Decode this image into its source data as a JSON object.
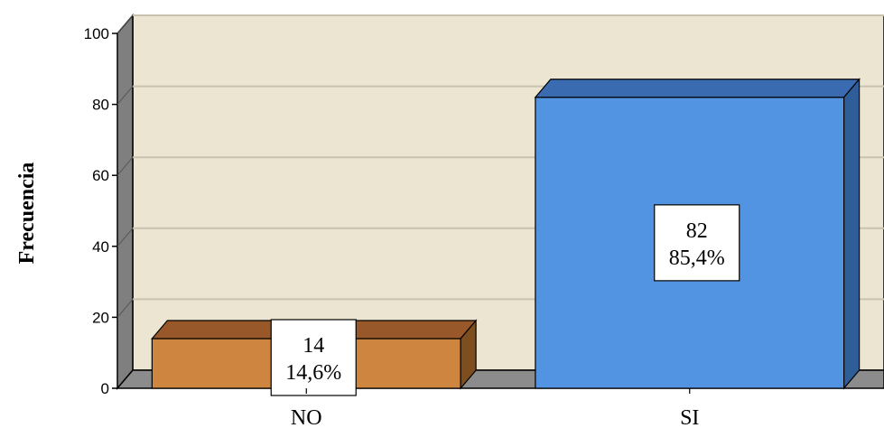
{
  "chart_data": {
    "type": "bar",
    "categories": [
      "NO",
      "SI"
    ],
    "values": [
      14,
      82
    ],
    "percent_labels": [
      "14,6%",
      "85,4%"
    ],
    "count_labels": [
      "14",
      "82"
    ],
    "ylabel": "Frecuencia",
    "xlabel": "",
    "ylim": [
      0,
      100
    ],
    "yticks": [
      0,
      20,
      40,
      60,
      80,
      100
    ],
    "grid": true,
    "legend": "none",
    "colors": {
      "bars": [
        "#CD853F",
        "#5294E2"
      ],
      "bar_side": [
        "#7F4E1E",
        "#2F5D97"
      ],
      "bar_top": [
        "#98582A",
        "#3A6BB0"
      ],
      "plot_background": "#EBE5D1",
      "wall_side": "#7F7F7F",
      "floor": "#8C8C8C",
      "gridline": "#C8C2B0"
    }
  }
}
